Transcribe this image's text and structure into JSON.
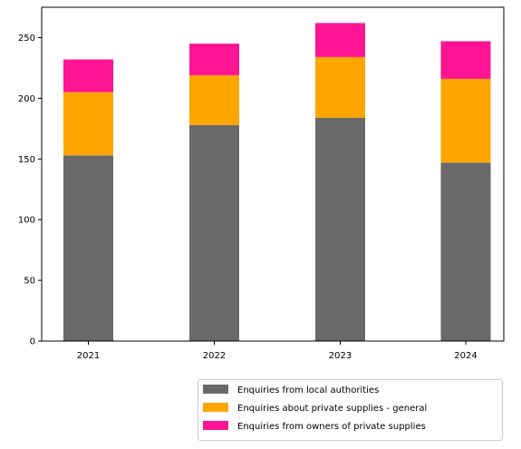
{
  "chart_data": {
    "type": "bar",
    "stacked": true,
    "categories": [
      "2021",
      "2022",
      "2023",
      "2024"
    ],
    "series": [
      {
        "name": "Enquiries from local authorities",
        "color": "#696969",
        "values": [
          153,
          178,
          184,
          147
        ]
      },
      {
        "name": "Enquiries about private supplies - general",
        "color": "#ffa500",
        "values": [
          52,
          41,
          50,
          69
        ]
      },
      {
        "name": "Enquiries from owners of private supplies",
        "color": "#ff1493",
        "values": [
          27,
          26,
          28,
          31
        ]
      }
    ],
    "ylim": [
      0,
      275
    ],
    "yticks": [
      0,
      50,
      100,
      150,
      200,
      250
    ],
    "grid": false,
    "legend_position": "bottom-right, outside plot"
  }
}
